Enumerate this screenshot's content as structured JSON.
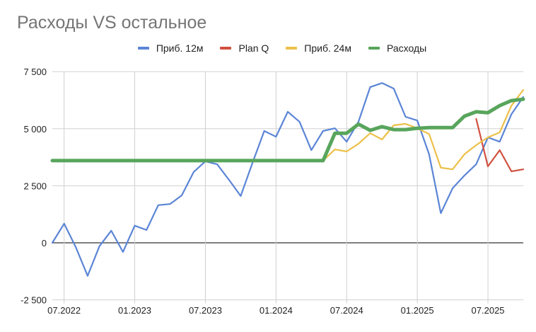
{
  "chart_data": {
    "type": "line",
    "title": "Расходы VS остальное",
    "xlabel": "",
    "ylabel": "",
    "ylim": [
      -2500,
      7500
    ],
    "yticks": [
      7500,
      5000,
      2500,
      0,
      -2500
    ],
    "ytick_labels": [
      "7 500",
      "5 000",
      "2 500",
      "0",
      "-2 500"
    ],
    "xtick_labels": [
      "07.2022",
      "01.2023",
      "07.2023",
      "01.2024",
      "07.2024",
      "01.2025",
      "07.2025"
    ],
    "grid": true,
    "legend_position": "top",
    "x": [
      "06.2022",
      "07.2022",
      "08.2022",
      "09.2022",
      "10.2022",
      "11.2022",
      "12.2022",
      "01.2023",
      "02.2023",
      "03.2023",
      "04.2023",
      "05.2023",
      "06.2023",
      "07.2023",
      "08.2023",
      "09.2023",
      "10.2023",
      "11.2023",
      "12.2023",
      "01.2024",
      "02.2024",
      "03.2024",
      "04.2024",
      "05.2024",
      "06.2024",
      "07.2024",
      "08.2024",
      "09.2024",
      "10.2024",
      "11.2024",
      "12.2024",
      "01.2025",
      "02.2025",
      "03.2025",
      "04.2025",
      "05.2025",
      "06.2025",
      "07.2025",
      "08.2025",
      "09.2025",
      "10.2025"
    ],
    "series": [
      {
        "name": "Приб. 12м",
        "color": "#5b85d6",
        "values": [
          0,
          840,
          -200,
          -1450,
          -150,
          530,
          -400,
          750,
          560,
          1650,
          1700,
          2080,
          3100,
          3570,
          3440,
          2760,
          2050,
          3500,
          4900,
          4650,
          5740,
          5300,
          4060,
          4900,
          5020,
          4430,
          5300,
          6820,
          7000,
          6760,
          5520,
          5360,
          3880,
          1300,
          2390,
          2950,
          3440,
          4620,
          4430,
          5640,
          6390
        ]
      },
      {
        "name": "Plan Q",
        "color": "#d1503f",
        "values": [
          null,
          null,
          null,
          null,
          null,
          null,
          null,
          null,
          null,
          null,
          null,
          null,
          null,
          null,
          null,
          null,
          null,
          null,
          null,
          null,
          null,
          null,
          null,
          null,
          null,
          null,
          null,
          null,
          null,
          null,
          null,
          null,
          null,
          null,
          null,
          null,
          5430,
          3350,
          4060,
          3130,
          3220
        ]
      },
      {
        "name": "Приб. 24м",
        "color": "#ecc049",
        "values": [
          null,
          null,
          null,
          null,
          null,
          null,
          null,
          null,
          null,
          null,
          null,
          null,
          null,
          null,
          null,
          null,
          null,
          null,
          null,
          null,
          null,
          null,
          null,
          3600,
          4090,
          4000,
          4340,
          4800,
          4530,
          5150,
          5210,
          5020,
          4770,
          3290,
          3220,
          3880,
          4280,
          4620,
          4840,
          6010,
          6700
        ]
      },
      {
        "name": "Расходы",
        "color": "#58a55c",
        "values": [
          3600,
          3600,
          3600,
          3600,
          3600,
          3600,
          3600,
          3600,
          3600,
          3600,
          3600,
          3600,
          3600,
          3600,
          3600,
          3600,
          3600,
          3600,
          3600,
          3600,
          3600,
          3600,
          3600,
          3600,
          4800,
          4800,
          5200,
          4930,
          5090,
          4960,
          4960,
          5020,
          5050,
          5050,
          5050,
          5550,
          5740,
          5700,
          6010,
          6230,
          6290
        ]
      }
    ]
  },
  "legend": [
    {
      "label": "Приб. 12м",
      "color": "#5b85d6"
    },
    {
      "label": "Plan Q",
      "color": "#d1503f"
    },
    {
      "label": "Приб. 24м",
      "color": "#ecc049"
    },
    {
      "label": "Расходы",
      "color": "#58a55c"
    }
  ]
}
